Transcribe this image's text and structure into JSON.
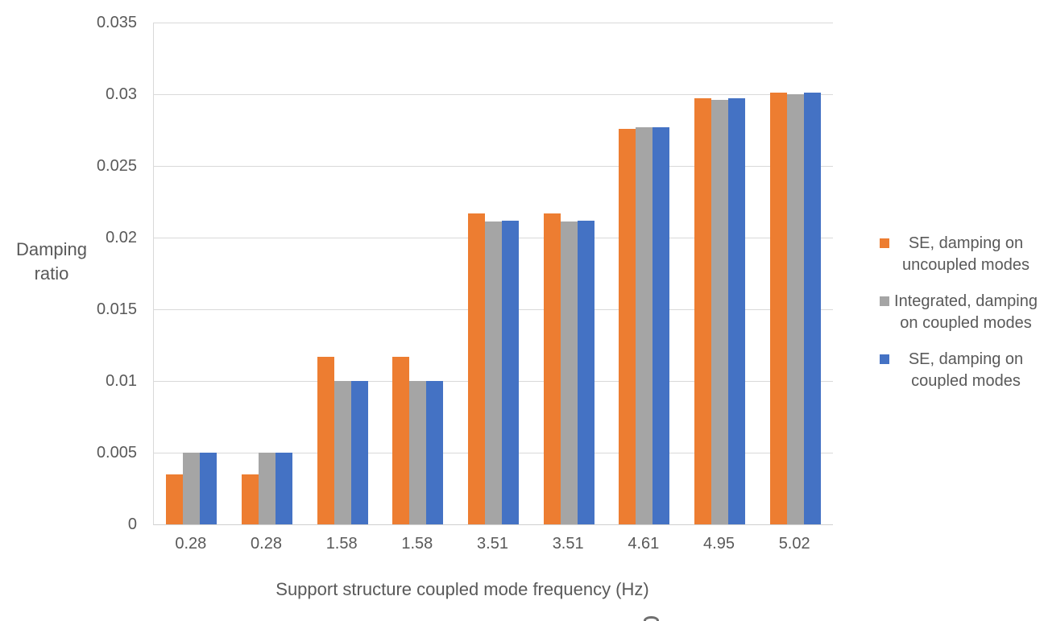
{
  "chart_data": {
    "type": "bar",
    "title": "",
    "xlabel": "Support structure coupled mode frequency (Hz)",
    "ylabel": "Damping ratio",
    "categories": [
      "0.28",
      "0.28",
      "1.58",
      "1.58",
      "3.51",
      "3.51",
      "4.61",
      "4.95",
      "5.02"
    ],
    "series": [
      {
        "name": "SE, damping on uncoupled modes",
        "color": "#ED7D31",
        "values": [
          0.0035,
          0.0035,
          0.0117,
          0.0117,
          0.0217,
          0.0217,
          0.0276,
          0.0297,
          0.0301
        ]
      },
      {
        "name": "Integrated, damping on coupled modes",
        "color": "#A5A5A5",
        "values": [
          0.005,
          0.005,
          0.01,
          0.01,
          0.0211,
          0.0211,
          0.0277,
          0.0296,
          0.03
        ]
      },
      {
        "name": "SE, damping on coupled modes",
        "color": "#4472C4",
        "values": [
          0.005,
          0.005,
          0.01,
          0.01,
          0.0212,
          0.0212,
          0.0277,
          0.0297,
          0.0301
        ]
      }
    ],
    "ylim": [
      0,
      0.035
    ],
    "ytick_step": 0.005,
    "ytick_labels": [
      "0",
      "0.005",
      "0.01",
      "0.015",
      "0.02",
      "0.025",
      "0.03",
      "0.035"
    ],
    "grid": true,
    "legend_position": "right",
    "colors": {
      "gridline": "#D9D9D9",
      "axis_text": "#595959",
      "background": "#FFFFFF"
    }
  }
}
